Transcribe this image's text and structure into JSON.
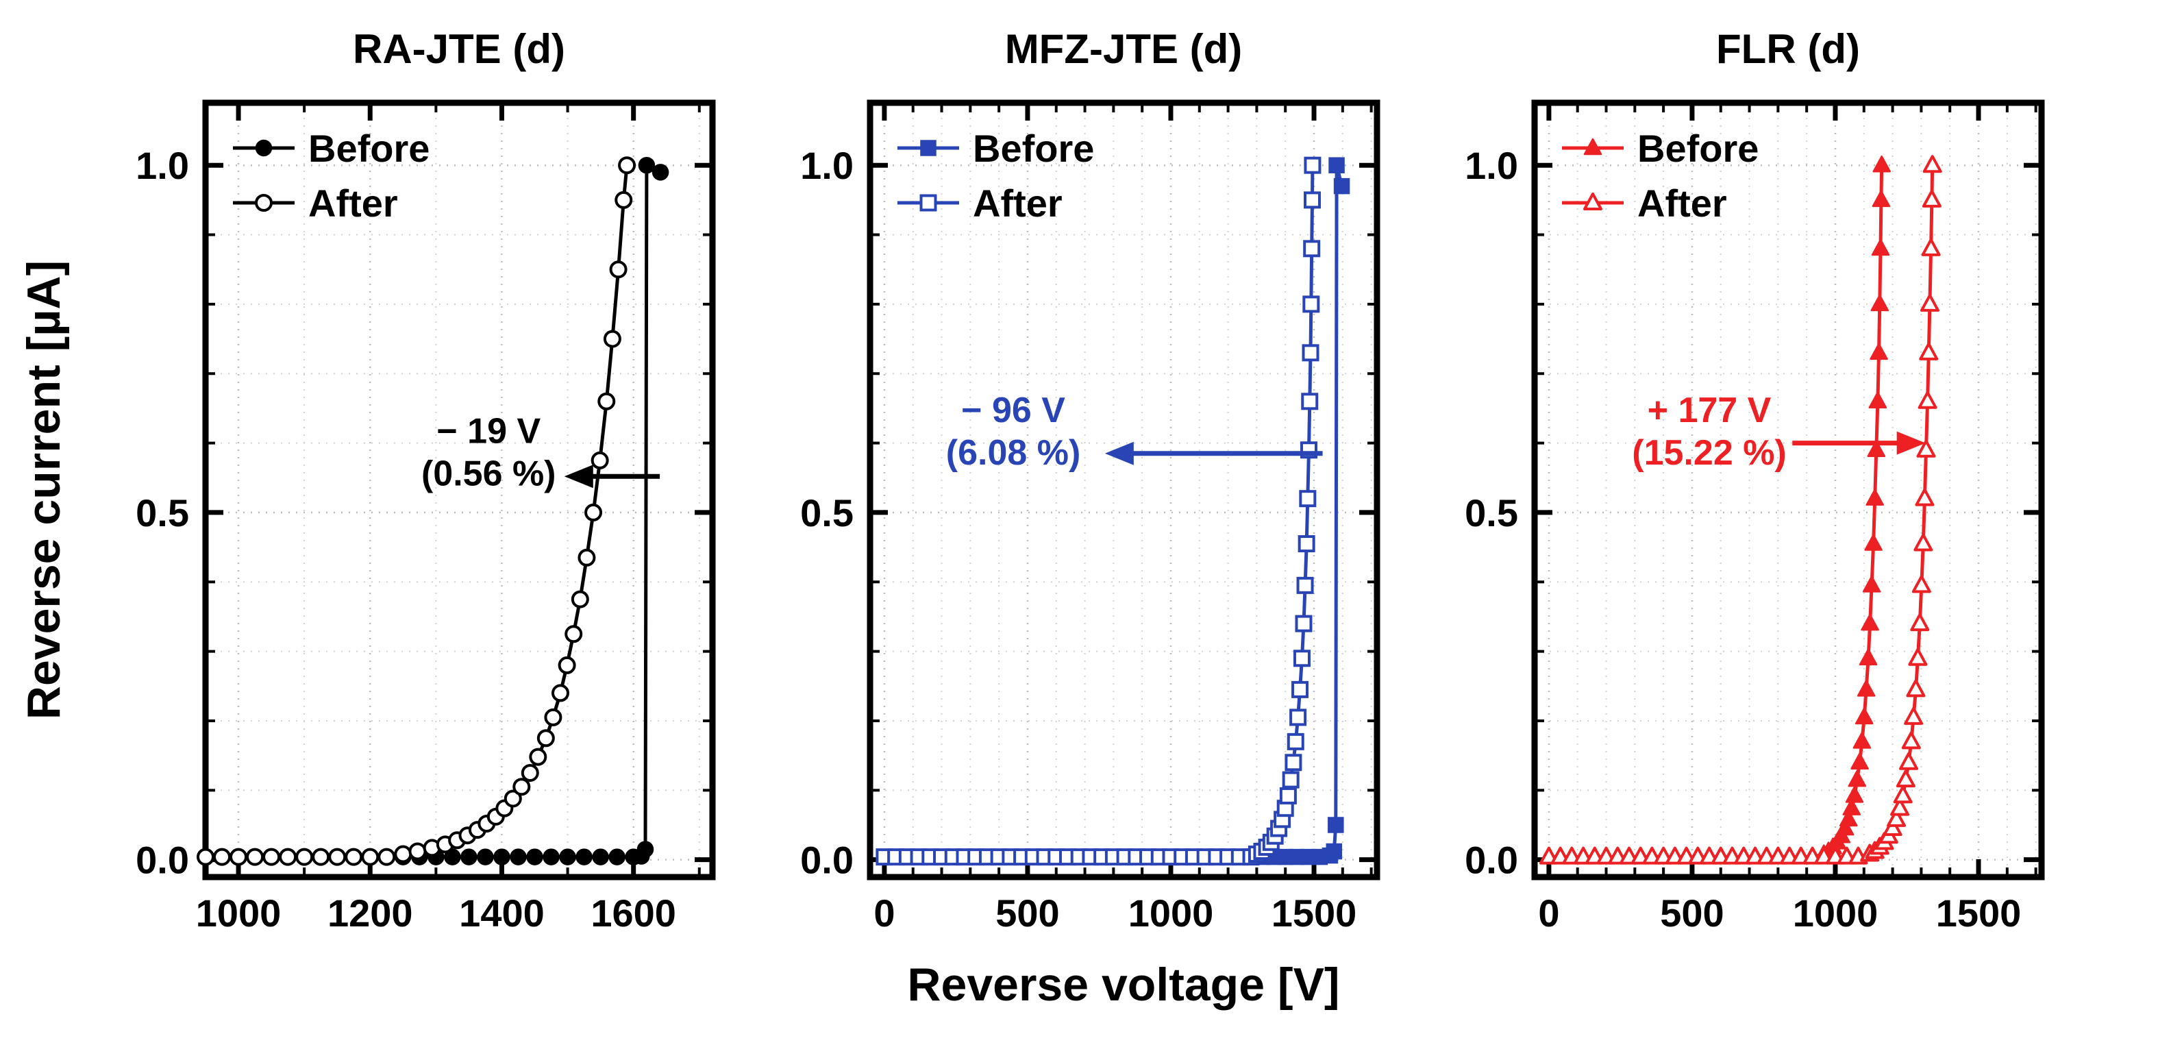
{
  "axes": {
    "x_label": "Reverse voltage [V]",
    "y_label": "Reverse current [µA]"
  },
  "chart_data": [
    {
      "type": "line",
      "title": "RA-JTE (d)",
      "color": "#000000",
      "xlim": [
        950,
        1720
      ],
      "ylim": [
        -0.025,
        1.09
      ],
      "xticks": [
        1000,
        1200,
        1400,
        1600
      ],
      "xtick_labels": [
        "1000",
        "1200",
        "1400",
        "1600"
      ],
      "yticks": [
        0,
        0.5,
        1.0
      ],
      "ytick_labels": [
        "0.0",
        "0.5",
        "1.0"
      ],
      "x_minor_step": 100,
      "y_minor_step": 0.1,
      "series": [
        {
          "name": "Before",
          "marker": "circle",
          "fill": "solid",
          "baseline": {
            "from": 950,
            "to": 1605,
            "step": 25,
            "y": 0.004
          },
          "rise": [
            [
              1612,
              0.005
            ],
            [
              1618,
              0.015
            ],
            [
              1620,
              1.0
            ],
            [
              1641,
              0.99
            ]
          ]
        },
        {
          "name": "After",
          "marker": "circle",
          "fill": "open",
          "baseline": {
            "from": 950,
            "to": 1225,
            "step": 25,
            "y": 0.004
          },
          "rise": [
            [
              1250,
              0.008
            ],
            [
              1272,
              0.012
            ],
            [
              1294,
              0.017
            ],
            [
              1314,
              0.022
            ],
            [
              1332,
              0.028
            ],
            [
              1348,
              0.035
            ],
            [
              1363,
              0.043
            ],
            [
              1377,
              0.052
            ],
            [
              1391,
              0.062
            ],
            [
              1404,
              0.074
            ],
            [
              1417,
              0.088
            ],
            [
              1430,
              0.105
            ],
            [
              1443,
              0.125
            ],
            [
              1455,
              0.148
            ],
            [
              1467,
              0.175
            ],
            [
              1478,
              0.205
            ],
            [
              1489,
              0.24
            ],
            [
              1499,
              0.28
            ],
            [
              1509,
              0.325
            ],
            [
              1519,
              0.375
            ],
            [
              1529,
              0.435
            ],
            [
              1539,
              0.5
            ],
            [
              1549,
              0.575
            ],
            [
              1559,
              0.66
            ],
            [
              1568,
              0.75
            ],
            [
              1577,
              0.85
            ],
            [
              1585,
              0.95
            ],
            [
              1590,
              1.0
            ]
          ]
        }
      ],
      "annotation": {
        "line1": "− 19 V",
        "line2": "(0.56 %)",
        "text_x": 1380,
        "text_y": 0.6,
        "arrow": {
          "y": 0.552,
          "tail_x": 1640,
          "head_x": 1495,
          "direction": "left"
        }
      }
    },
    {
      "type": "line",
      "title": "MFZ-JTE (d)",
      "color": "#2945b5",
      "xlim": [
        -50,
        1720
      ],
      "ylim": [
        -0.025,
        1.09
      ],
      "xticks": [
        0,
        500,
        1000,
        1500
      ],
      "xtick_labels": [
        "0",
        "500",
        "1000",
        "1500"
      ],
      "yticks": [
        0,
        0.5,
        1.0
      ],
      "ytick_labels": [
        "0.0",
        "0.5",
        "1.0"
      ],
      "x_minor_step": 100,
      "y_minor_step": 0.1,
      "series": [
        {
          "name": "Before",
          "marker": "square",
          "fill": "solid",
          "baseline": {
            "from": 0,
            "to": 1540,
            "step": 40,
            "y": 0.004
          },
          "rise": [
            [
              1556,
              0.006
            ],
            [
              1570,
              0.012
            ],
            [
              1576,
              0.05
            ],
            [
              1579,
              1.0
            ],
            [
              1597,
              0.97
            ]
          ]
        },
        {
          "name": "After",
          "marker": "square",
          "fill": "open",
          "baseline": {
            "from": 0,
            "to": 1280,
            "step": 40,
            "y": 0.004
          },
          "rise": [
            [
              1300,
              0.008
            ],
            [
              1318,
              0.012
            ],
            [
              1335,
              0.018
            ],
            [
              1350,
              0.025
            ],
            [
              1364,
              0.034
            ],
            [
              1377,
              0.045
            ],
            [
              1389,
              0.058
            ],
            [
              1400,
              0.074
            ],
            [
              1410,
              0.092
            ],
            [
              1419,
              0.115
            ],
            [
              1428,
              0.14
            ],
            [
              1436,
              0.17
            ],
            [
              1444,
              0.205
            ],
            [
              1451,
              0.245
            ],
            [
              1458,
              0.29
            ],
            [
              1464,
              0.34
            ],
            [
              1469,
              0.395
            ],
            [
              1474,
              0.455
            ],
            [
              1478,
              0.52
            ],
            [
              1482,
              0.59
            ],
            [
              1485,
              0.66
            ],
            [
              1488,
              0.73
            ],
            [
              1490,
              0.8
            ],
            [
              1492,
              0.88
            ],
            [
              1494,
              0.95
            ],
            [
              1495,
              1.0
            ]
          ]
        }
      ],
      "annotation": {
        "line1": "− 96 V",
        "line2": "(6.08 %)",
        "text_x": 450,
        "text_y": 0.63,
        "arrow": {
          "y": 0.585,
          "tail_x": 1530,
          "head_x": 770,
          "direction": "left"
        }
      }
    },
    {
      "type": "line",
      "title": "FLR (d)",
      "color": "#ed2024",
      "xlim": [
        -50,
        1720
      ],
      "ylim": [
        -0.025,
        1.09
      ],
      "xticks": [
        0,
        500,
        1000,
        1500
      ],
      "xtick_labels": [
        "0",
        "500",
        "1000",
        "1500"
      ],
      "yticks": [
        0,
        0.5,
        1.0
      ],
      "ytick_labels": [
        "0.0",
        "0.5",
        "1.0"
      ],
      "x_minor_step": 100,
      "y_minor_step": 0.1,
      "series": [
        {
          "name": "Before",
          "marker": "triangle",
          "fill": "solid",
          "baseline": {
            "from": 0,
            "to": 940,
            "step": 40,
            "y": 0.004
          },
          "rise": [
            [
              960,
              0.008
            ],
            [
              976,
              0.012
            ],
            [
              992,
              0.018
            ],
            [
              1007,
              0.025
            ],
            [
              1021,
              0.034
            ],
            [
              1034,
              0.045
            ],
            [
              1046,
              0.058
            ],
            [
              1057,
              0.074
            ],
            [
              1067,
              0.092
            ],
            [
              1076,
              0.115
            ],
            [
              1085,
              0.14
            ],
            [
              1093,
              0.17
            ],
            [
              1101,
              0.205
            ],
            [
              1108,
              0.245
            ],
            [
              1115,
              0.29
            ],
            [
              1121,
              0.34
            ],
            [
              1127,
              0.395
            ],
            [
              1133,
              0.455
            ],
            [
              1138,
              0.52
            ],
            [
              1143,
              0.59
            ],
            [
              1148,
              0.66
            ],
            [
              1152,
              0.73
            ],
            [
              1155,
              0.8
            ],
            [
              1158,
              0.88
            ],
            [
              1160,
              0.95
            ],
            [
              1162,
              1.0
            ]
          ]
        },
        {
          "name": "After",
          "marker": "triangle",
          "fill": "open",
          "baseline": {
            "from": 0,
            "to": 1100,
            "step": 40,
            "y": 0.004
          },
          "rise": [
            [
              1120,
              0.008
            ],
            [
              1138,
              0.012
            ],
            [
              1155,
              0.018
            ],
            [
              1171,
              0.025
            ],
            [
              1186,
              0.034
            ],
            [
              1200,
              0.045
            ],
            [
              1213,
              0.058
            ],
            [
              1225,
              0.074
            ],
            [
              1236,
              0.092
            ],
            [
              1246,
              0.115
            ],
            [
              1256,
              0.14
            ],
            [
              1265,
              0.17
            ],
            [
              1273,
              0.205
            ],
            [
              1281,
              0.245
            ],
            [
              1288,
              0.29
            ],
            [
              1295,
              0.34
            ],
            [
              1301,
              0.395
            ],
            [
              1307,
              0.455
            ],
            [
              1312,
              0.52
            ],
            [
              1317,
              0.59
            ],
            [
              1322,
              0.66
            ],
            [
              1326,
              0.73
            ],
            [
              1330,
              0.8
            ],
            [
              1334,
              0.88
            ],
            [
              1337,
              0.95
            ],
            [
              1339,
              1.0
            ]
          ]
        }
      ],
      "annotation": {
        "line1": "+ 177 V",
        "line2": "(15.22 %)",
        "text_x": 560,
        "text_y": 0.63,
        "arrow": {
          "y": 0.6,
          "tail_x": 850,
          "head_x": 1315,
          "direction": "right"
        }
      }
    }
  ]
}
